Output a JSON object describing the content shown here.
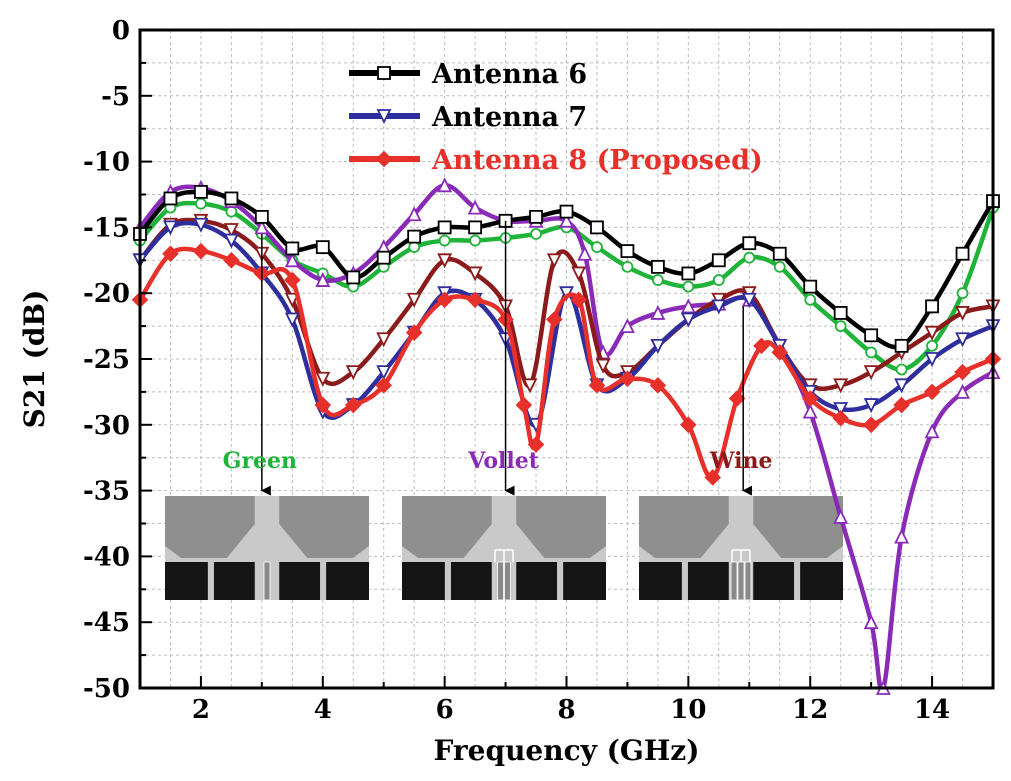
{
  "chart_data": {
    "type": "line",
    "xlabel": "Frequency (GHz)",
    "ylabel": "S21 (dB)",
    "xlim": [
      1,
      15
    ],
    "ylim": [
      -50,
      0
    ],
    "xticks": [
      2,
      4,
      6,
      8,
      10,
      12,
      14
    ],
    "yticks": [
      0,
      -5,
      -10,
      -15,
      -20,
      -25,
      -30,
      -35,
      -40,
      -45,
      -50
    ],
    "grid": true,
    "legend_position": "top-center",
    "series": [
      {
        "name": "Antenna 6",
        "color": "#000000",
        "marker": "square",
        "x": [
          1,
          1.5,
          2,
          2.5,
          3,
          3.5,
          4,
          4.5,
          5,
          5.5,
          6,
          6.5,
          7,
          7.5,
          8,
          8.5,
          9,
          9.5,
          10,
          10.5,
          11,
          11.5,
          12,
          12.5,
          13,
          13.5,
          14,
          14.5,
          15
        ],
        "y": [
          -15.5,
          -12.8,
          -12.3,
          -12.8,
          -14.2,
          -16.6,
          -16.5,
          -18.8,
          -17.3,
          -15.7,
          -15.0,
          -15.0,
          -14.5,
          -14.2,
          -13.8,
          -15.0,
          -16.8,
          -18.0,
          -18.5,
          -17.5,
          -16.2,
          -17.0,
          -19.5,
          -21.5,
          -23.2,
          -24.0,
          -21.0,
          -17.0,
          -13.0
        ]
      },
      {
        "name": "Antenna 7",
        "color": "#2e2e9e",
        "marker": "triangle-down",
        "x": [
          1,
          1.5,
          2,
          2.5,
          3,
          3.5,
          4,
          4.5,
          5,
          5.5,
          6,
          6.5,
          7,
          7.5,
          8,
          8.5,
          9,
          9.5,
          10,
          10.5,
          11,
          11.5,
          12,
          12.5,
          13,
          13.5,
          14,
          14.5,
          15
        ],
        "y": [
          -17.5,
          -15.0,
          -14.8,
          -16.0,
          -18.5,
          -22.0,
          -29.0,
          -28.5,
          -26.0,
          -23.0,
          -20.0,
          -20.5,
          -23.5,
          -30.0,
          -20.0,
          -27.0,
          -26.5,
          -24.0,
          -22.0,
          -21.0,
          -20.5,
          -24.0,
          -27.5,
          -28.8,
          -28.5,
          -27.0,
          -25.0,
          -23.5,
          -22.5
        ]
      },
      {
        "name": "Antenna 8 (Proposed)",
        "color": "#e8302a",
        "marker": "diamond",
        "x": [
          1,
          1.5,
          2,
          2.5,
          3,
          3.5,
          4,
          4.5,
          5,
          5.5,
          6,
          6.5,
          7,
          7.3,
          7.5,
          7.8,
          8.2,
          8.5,
          9,
          9.5,
          10,
          10.4,
          10.8,
          11.2,
          11.5,
          12,
          12.5,
          13,
          13.5,
          14,
          14.5,
          15
        ],
        "y": [
          -20.5,
          -17.0,
          -16.8,
          -17.5,
          -18.5,
          -19.0,
          -28.5,
          -28.5,
          -27.0,
          -23.0,
          -20.5,
          -20.5,
          -22.0,
          -28.5,
          -31.5,
          -22.0,
          -20.5,
          -27.0,
          -26.5,
          -27.0,
          -30.0,
          -34.0,
          -28.0,
          -24.0,
          -24.5,
          -28.0,
          -29.5,
          -30.0,
          -28.5,
          -27.5,
          -26.0,
          -25.0
        ]
      },
      {
        "name": "Green",
        "color": "#1fb33a",
        "marker": "circle",
        "x": [
          1,
          1.5,
          2,
          2.5,
          3,
          3.5,
          4,
          4.5,
          5,
          5.5,
          6,
          6.5,
          7,
          7.5,
          8,
          8.5,
          9,
          9.5,
          10,
          10.5,
          11,
          11.5,
          12,
          12.5,
          13,
          13.5,
          14,
          14.5,
          15
        ],
        "y": [
          -16.0,
          -13.5,
          -13.2,
          -13.8,
          -15.5,
          -17.5,
          -18.5,
          -19.5,
          -18.0,
          -16.5,
          -16.0,
          -16.0,
          -15.8,
          -15.5,
          -15.0,
          -16.5,
          -18.0,
          -19.0,
          -19.5,
          -19.0,
          -17.3,
          -18.0,
          -20.5,
          -22.5,
          -24.5,
          -25.8,
          -24.0,
          -20.0,
          -13.5
        ]
      },
      {
        "name": "Violet",
        "color": "#8a2bb8",
        "marker": "triangle-up",
        "x": [
          1,
          1.5,
          2,
          2.5,
          3,
          3.5,
          4,
          4.5,
          5,
          5.5,
          6,
          6.5,
          7,
          7.5,
          8,
          8.3,
          8.6,
          9,
          9.5,
          10,
          10.5,
          11,
          11.5,
          12,
          12.5,
          13,
          13.2,
          13.5,
          14,
          14.5,
          15
        ],
        "y": [
          -15.0,
          -12.3,
          -12.0,
          -13.0,
          -15.0,
          -17.5,
          -19.0,
          -18.5,
          -16.5,
          -14.0,
          -11.8,
          -13.5,
          -14.5,
          -14.5,
          -14.5,
          -17.0,
          -24.5,
          -22.5,
          -21.5,
          -21.0,
          -20.8,
          -20.5,
          -24.0,
          -29.0,
          -37.0,
          -45.0,
          -50.0,
          -38.5,
          -30.5,
          -27.5,
          -26.0
        ]
      },
      {
        "name": "Wine",
        "color": "#8b1a1a",
        "marker": "triangle-down",
        "x": [
          1,
          1.5,
          2,
          2.5,
          3,
          3.5,
          4,
          4.5,
          5,
          5.5,
          6,
          6.5,
          7,
          7.4,
          7.8,
          8.2,
          8.6,
          9,
          9.5,
          10,
          10.5,
          11,
          11.5,
          12,
          12.5,
          13,
          13.5,
          14,
          14.5,
          15
        ],
        "y": [
          -17.5,
          -14.8,
          -14.5,
          -15.2,
          -17.0,
          -20.5,
          -26.5,
          -26.0,
          -23.5,
          -20.5,
          -17.5,
          -18.5,
          -21.0,
          -27.0,
          -17.5,
          -18.5,
          -25.5,
          -26.0,
          -24.0,
          -22.0,
          -20.5,
          -20.0,
          -24.0,
          -27.0,
          -27.0,
          -26.0,
          -24.5,
          -23.0,
          -21.5,
          -21.0
        ]
      }
    ],
    "annotations": [
      {
        "label": "Green",
        "color": "#1fb33a",
        "arrow_x": 3.0,
        "arrow_from_y": -15.5,
        "arrow_to_y": -35.0
      },
      {
        "label": "Vollet",
        "color": "#8a2bb8",
        "arrow_x": 7.0,
        "arrow_from_y": -14.5,
        "arrow_to_y": -35.0
      },
      {
        "label": "Wine",
        "color": "#8b1a1a",
        "arrow_x": 10.9,
        "arrow_from_y": -21.0,
        "arrow_to_y": -35.0
      }
    ]
  }
}
